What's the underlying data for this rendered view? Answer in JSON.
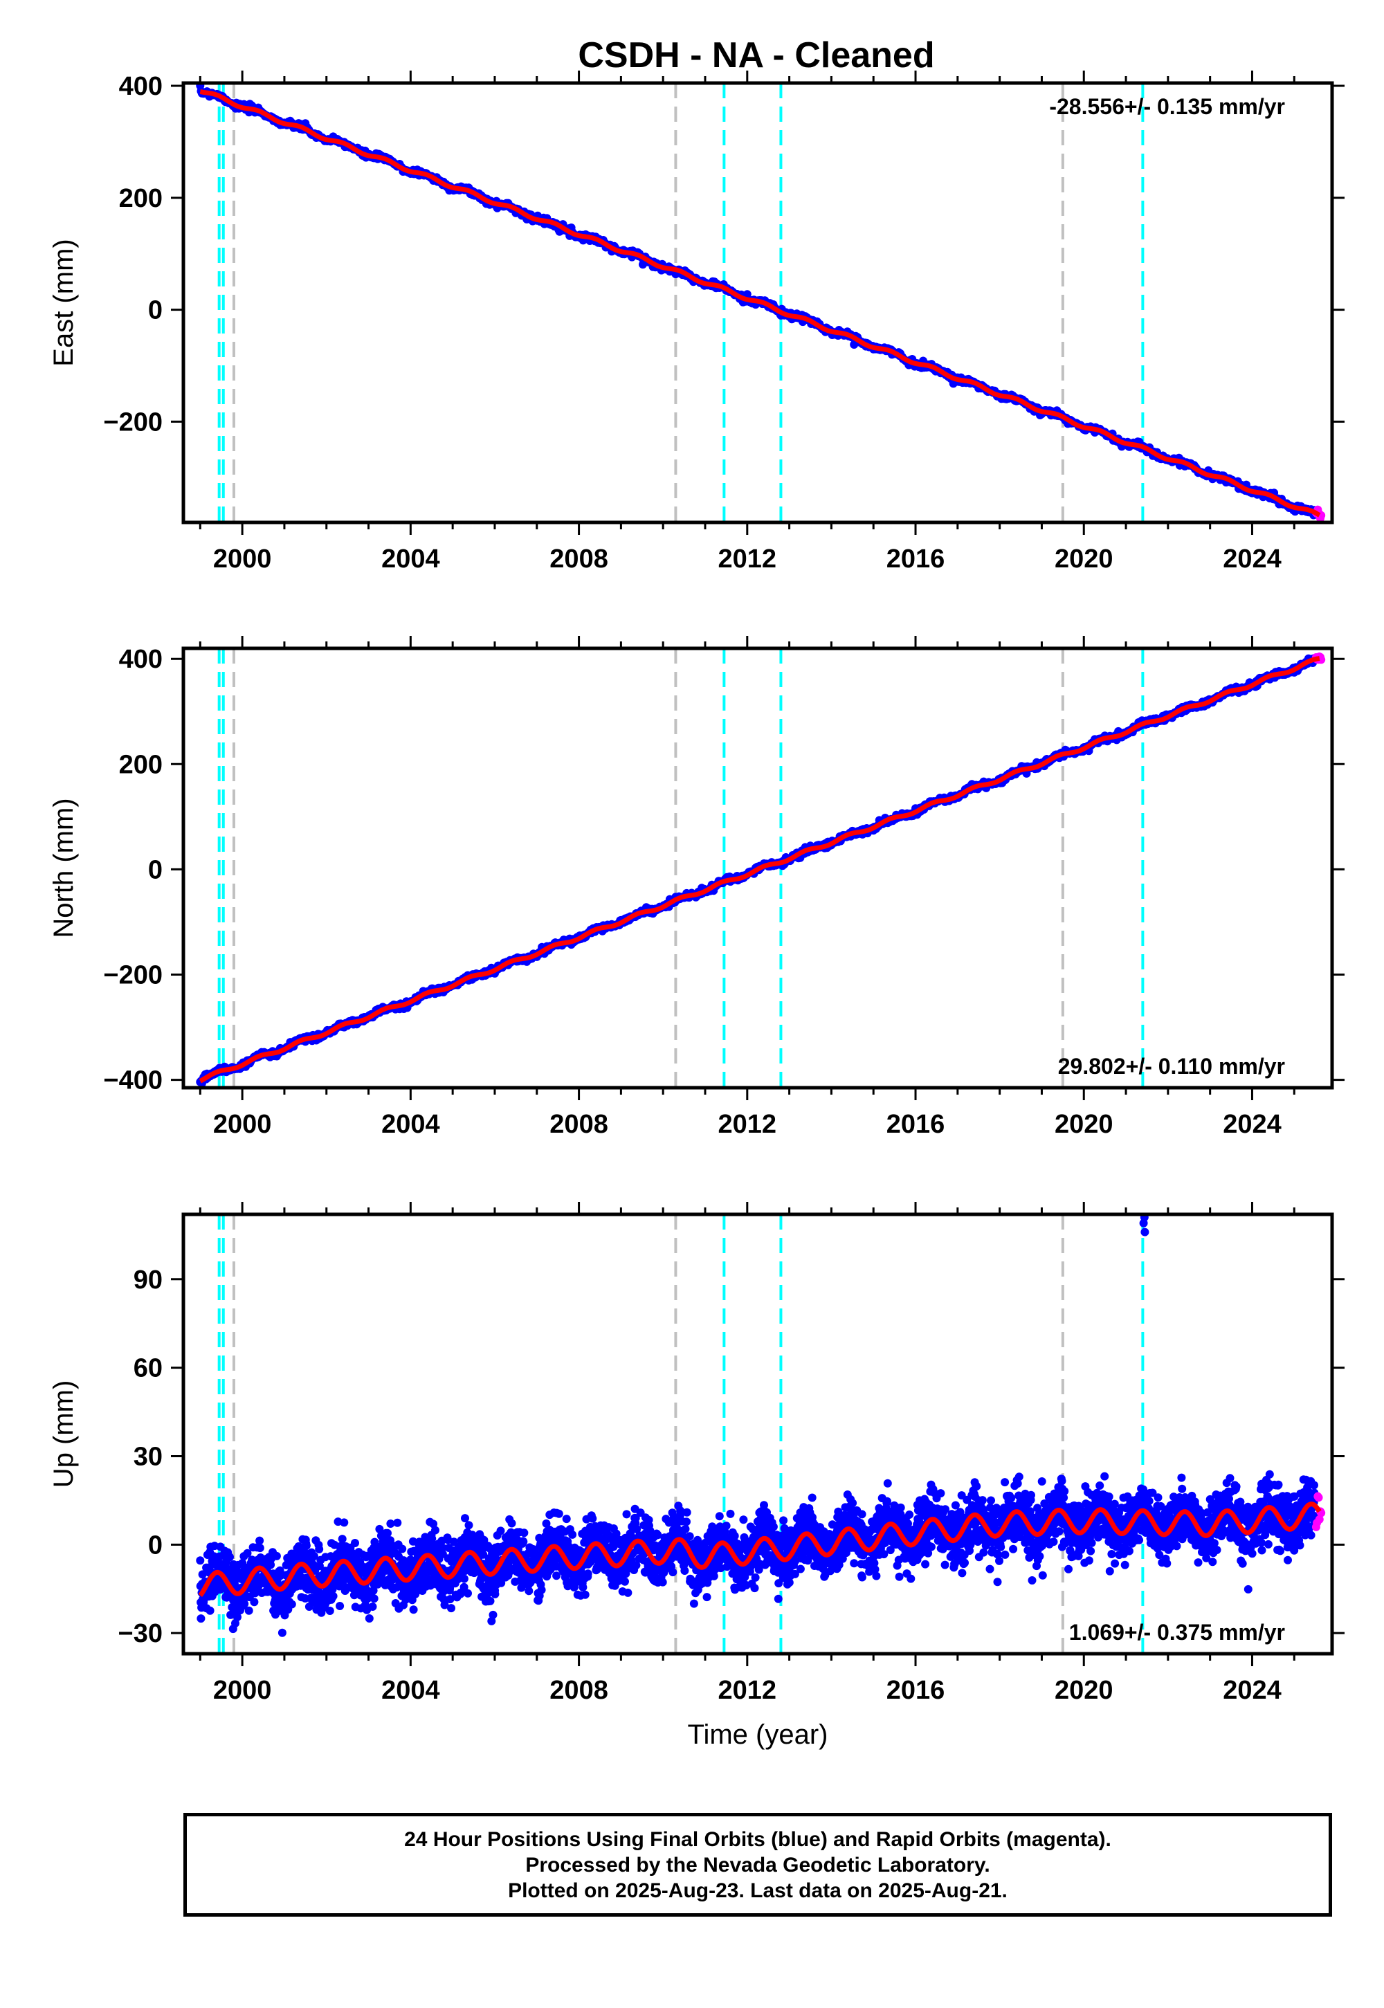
{
  "title": "CSDH  - NA - Cleaned",
  "footer": {
    "line1": "24 Hour Positions Using Final Orbits (blue) and Rapid Orbits (magenta).",
    "line2": "Processed by the Nevada Geodetic Laboratory.",
    "line3": "Plotted on 2025-Aug-23. Last data on 2025-Aug-21."
  },
  "colors": {
    "final_orbits": "#0000ff",
    "rapid_orbits": "#ff00ff",
    "model_fit": "#ff0000",
    "event_cyan": "#00ffff",
    "event_gray": "#c0c0c0"
  },
  "chart_data": [
    {
      "type": "scatter",
      "name": "east",
      "ylabel": "East (mm)",
      "xlabel": "",
      "xlim": [
        1998.6,
        2025.9
      ],
      "ylim": [
        -380,
        405
      ],
      "xticks": [
        2000,
        2004,
        2008,
        2012,
        2016,
        2020,
        2024
      ],
      "yticks": [
        -200,
        0,
        200,
        400
      ],
      "rate_label": "-28.556+/- 0.135 mm/yr",
      "rate_position": "top-right",
      "start": [
        1999.0,
        392
      ],
      "end": [
        2025.6,
        -368
      ],
      "seasonal_amplitude": 3,
      "noise": 3,
      "event_lines": {
        "cyan": [
          1999.45,
          1999.55,
          2011.45,
          2012.8,
          2021.4
        ],
        "gray": [
          1999.8,
          2010.3,
          2019.5
        ]
      }
    },
    {
      "type": "scatter",
      "name": "north",
      "ylabel": "North (mm)",
      "xlabel": "",
      "xlim": [
        1998.6,
        2025.9
      ],
      "ylim": [
        -415,
        420
      ],
      "xticks": [
        2000,
        2004,
        2008,
        2012,
        2016,
        2020,
        2024
      ],
      "yticks": [
        -400,
        -200,
        0,
        200,
        400
      ],
      "rate_label": "29.802+/- 0.110 mm/yr",
      "rate_position": "bottom-right",
      "start": [
        1999.0,
        -400
      ],
      "end": [
        2025.6,
        400
      ],
      "seasonal_amplitude": 3,
      "noise": 3,
      "event_lines": {
        "cyan": [
          1999.45,
          1999.55,
          2011.45,
          2012.8,
          2021.4
        ],
        "gray": [
          1999.8,
          2010.3,
          2019.5
        ]
      }
    },
    {
      "type": "scatter",
      "name": "up",
      "ylabel": "Up (mm)",
      "xlabel": "Time (year)",
      "xlim": [
        1998.6,
        2025.9
      ],
      "ylim": [
        -37,
        112
      ],
      "xticks": [
        2000,
        2004,
        2008,
        2012,
        2016,
        2020,
        2024
      ],
      "yticks": [
        -30,
        0,
        30,
        60,
        90
      ],
      "rate_label": "1.069+/- 0.375 mm/yr",
      "rate_position": "bottom-right",
      "trend": [
        [
          1999.0,
          -14
        ],
        [
          2001.0,
          -11
        ],
        [
          2004.0,
          -8
        ],
        [
          2008.0,
          -4
        ],
        [
          2010.3,
          -2
        ],
        [
          2011.0,
          -4
        ],
        [
          2013.0,
          -1
        ],
        [
          2016.0,
          4
        ],
        [
          2018.0,
          7
        ],
        [
          2020.0,
          8
        ],
        [
          2023.0,
          7
        ],
        [
          2025.6,
          10
        ]
      ],
      "seasonal_amplitude": 4,
      "noise": 5,
      "outliers": [
        [
          2021.42,
          109
        ],
        [
          2021.45,
          106
        ],
        [
          2021.44,
          111
        ]
      ],
      "event_lines": {
        "cyan": [
          1999.45,
          1999.55,
          2011.45,
          2012.8,
          2021.4
        ],
        "gray": [
          1999.8,
          2010.3,
          2019.5
        ]
      }
    }
  ]
}
